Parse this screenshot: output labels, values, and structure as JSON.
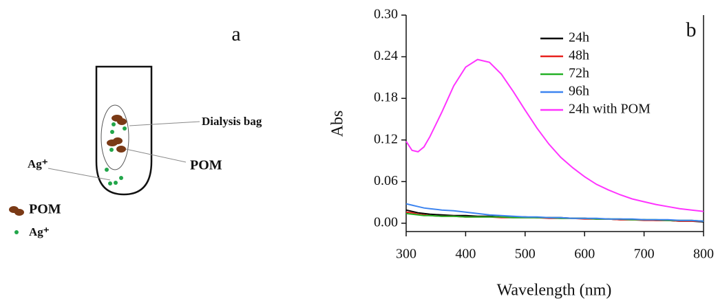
{
  "panel_a": {
    "label": "a",
    "dialysis_label": "Dialysis bag",
    "pom_label": "POM",
    "ag_label": "Ag⁺",
    "legend": [
      "POM",
      "Ag⁺"
    ]
  },
  "chart_data": {
    "type": "line",
    "panel_label": "b",
    "xlabel": "Wavelength (nm)",
    "ylabel": "Abs",
    "xlim": [
      300,
      800
    ],
    "xticks": [
      300,
      400,
      500,
      600,
      700,
      800
    ],
    "ylim": [
      -0.012,
      0.3
    ],
    "yticks": [
      {
        "value": 0,
        "label": "0.00"
      },
      0.06,
      0.12,
      0.18,
      0.24,
      {
        "value": 0.3,
        "label": "0.30"
      }
    ],
    "legend": "upper right",
    "x": [
      300,
      310,
      320,
      330,
      340,
      360,
      380,
      400,
      420,
      440,
      460,
      480,
      500,
      520,
      540,
      560,
      580,
      600,
      620,
      640,
      660,
      680,
      700,
      720,
      740,
      760,
      780,
      800
    ],
    "series": [
      {
        "name": "24h",
        "color": "#000000",
        "values": [
          0.019,
          0.017,
          0.015,
          0.014,
          0.013,
          0.012,
          0.011,
          0.011,
          0.01,
          0.01,
          0.009,
          0.009,
          0.009,
          0.008,
          0.008,
          0.008,
          0.007,
          0.007,
          0.006,
          0.006,
          0.005,
          0.005,
          0.005,
          0.004,
          0.004,
          0.003,
          0.003,
          0.002
        ]
      },
      {
        "name": "48h",
        "color": "#e8201c",
        "values": [
          0.016,
          0.015,
          0.013,
          0.012,
          0.011,
          0.01,
          0.01,
          0.009,
          0.009,
          0.009,
          0.008,
          0.008,
          0.008,
          0.008,
          0.007,
          0.007,
          0.007,
          0.006,
          0.006,
          0.006,
          0.005,
          0.005,
          0.004,
          0.004,
          0.004,
          0.003,
          0.003,
          0.003
        ]
      },
      {
        "name": "72h",
        "color": "#22b024",
        "values": [
          0.014,
          0.013,
          0.012,
          0.011,
          0.011,
          0.01,
          0.01,
          0.009,
          0.009,
          0.009,
          0.009,
          0.008,
          0.008,
          0.008,
          0.008,
          0.007,
          0.007,
          0.007,
          0.006,
          0.006,
          0.006,
          0.005,
          0.005,
          0.005,
          0.004,
          0.004,
          0.004,
          0.003
        ]
      },
      {
        "name": "96h",
        "color": "#3c84f0",
        "values": [
          0.028,
          0.026,
          0.024,
          0.022,
          0.021,
          0.019,
          0.018,
          0.016,
          0.014,
          0.012,
          0.011,
          0.01,
          0.009,
          0.009,
          0.008,
          0.008,
          0.007,
          0.007,
          0.007,
          0.006,
          0.006,
          0.006,
          0.005,
          0.005,
          0.005,
          0.004,
          0.004,
          0.003
        ]
      },
      {
        "name": "24h with POM",
        "color": "#ff33ff",
        "values": [
          0.118,
          0.105,
          0.103,
          0.11,
          0.125,
          0.16,
          0.198,
          0.225,
          0.236,
          0.232,
          0.215,
          0.19,
          0.163,
          0.137,
          0.114,
          0.095,
          0.08,
          0.067,
          0.056,
          0.048,
          0.041,
          0.035,
          0.031,
          0.027,
          0.024,
          0.021,
          0.019,
          0.017
        ]
      }
    ]
  }
}
